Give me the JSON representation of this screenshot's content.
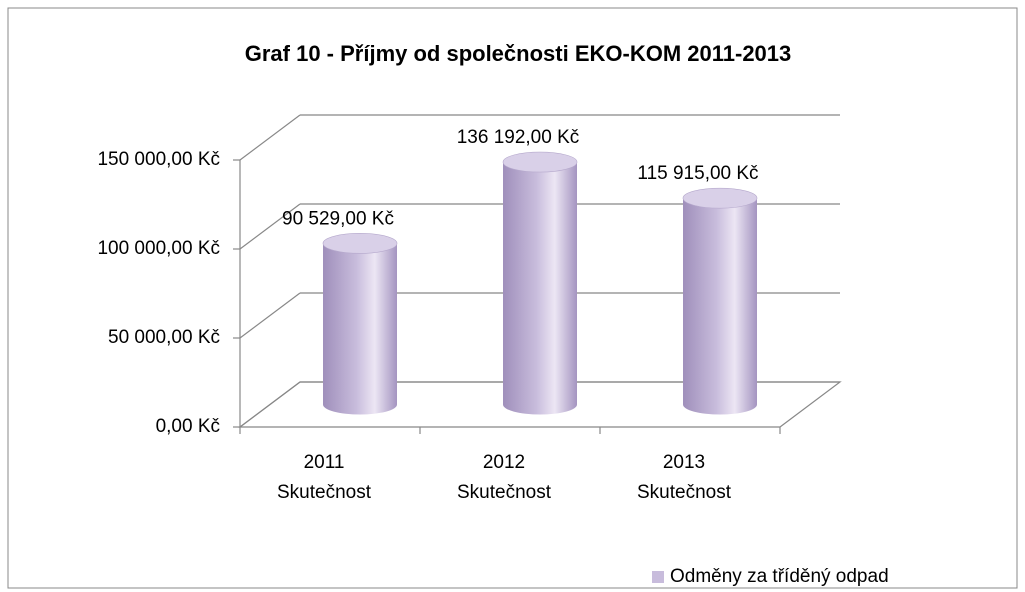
{
  "chart_data": {
    "type": "bar3d",
    "title": "Graf 10 - Příjmy od společnosti EKO-KOM 2011-2013",
    "categories": [
      [
        "2011",
        "Skutečnost"
      ],
      [
        "2012",
        "Skutečnost"
      ],
      [
        "2013",
        "Skutečnost"
      ]
    ],
    "series": [
      {
        "name": "Odměny za tříděný odpad",
        "color": "#c8bcdc",
        "values": [
          90529,
          136192,
          115915
        ],
        "value_labels": [
          "90 529,00 Kč",
          "136 192,00 Kč",
          "115 915,00 Kč"
        ]
      }
    ],
    "ylim": [
      0,
      150000
    ],
    "yticks": [
      {
        "value": 0,
        "label": "0,00 Kč"
      },
      {
        "value": 50000,
        "label": "50 000,00 Kč"
      },
      {
        "value": 100000,
        "label": "100 000,00 Kč"
      },
      {
        "value": 150000,
        "label": "150 000,00 Kč"
      }
    ],
    "grid": true,
    "legend": "bottom-right"
  }
}
